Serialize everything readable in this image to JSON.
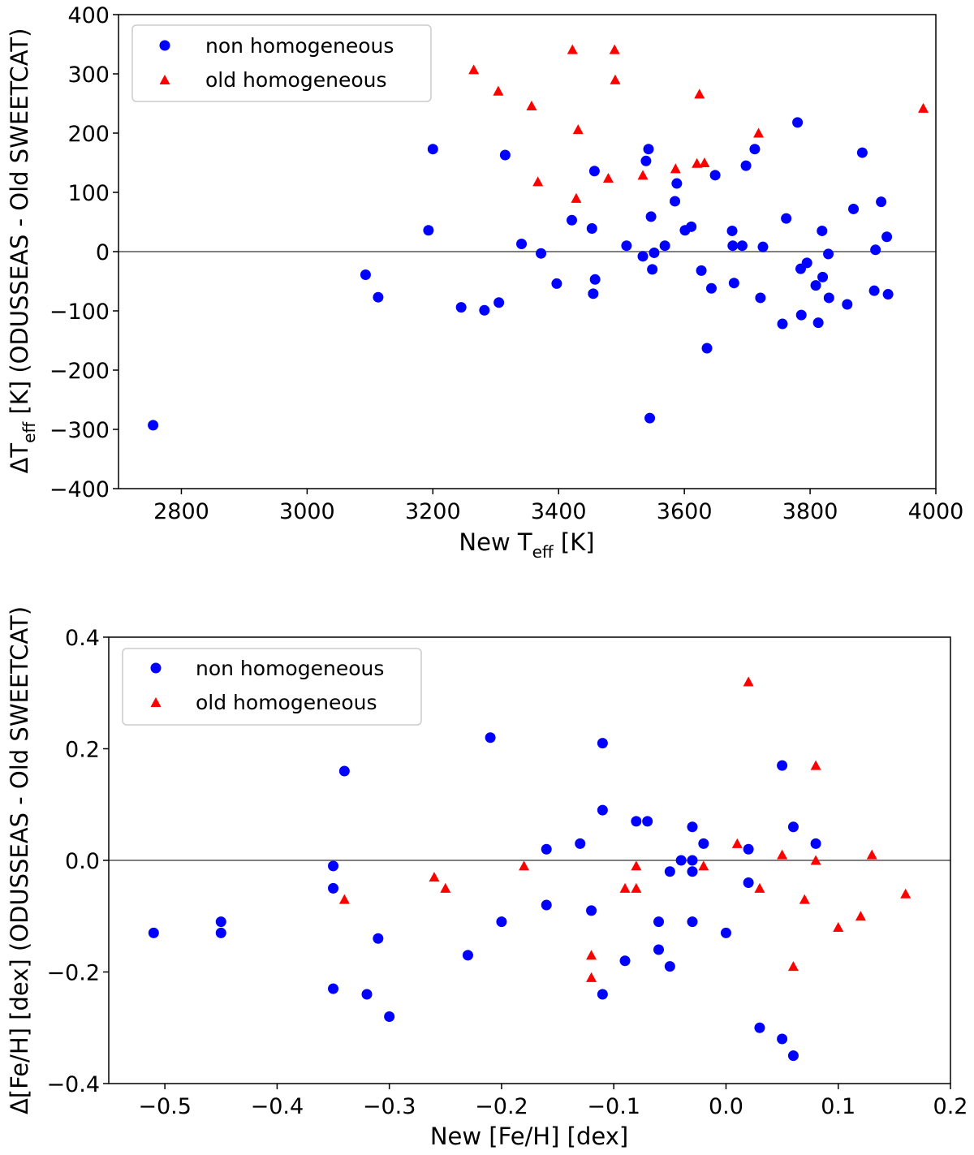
{
  "colors": {
    "non_homogeneous": "#0000ff",
    "old_homogeneous": "#ff0000",
    "zero_line": "#808080"
  },
  "chart_data": [
    {
      "type": "scatter",
      "panel": "top",
      "xlabel": {
        "main": "New T",
        "sub": "eff",
        "tail": " [K]"
      },
      "ylabel": {
        "pre": "ΔT",
        "sub": "eff",
        "tail": " [K] (ODUSSEAS - Old SWEETCAT)"
      },
      "xlim": [
        2700,
        4000
      ],
      "ylim": [
        -400,
        400
      ],
      "xticks": [
        2800,
        3000,
        3200,
        3400,
        3600,
        3800,
        4000
      ],
      "yticks": [
        -400,
        -300,
        -200,
        -100,
        0,
        100,
        200,
        300,
        400
      ],
      "xtick_labels": [
        "2800",
        "3000",
        "3200",
        "3400",
        "3600",
        "3800",
        "4000"
      ],
      "ytick_labels": [
        "−400",
        "−300",
        "−200",
        "−100",
        "0",
        "100",
        "200",
        "300",
        "400"
      ],
      "zero_line": 0,
      "legend": {
        "position": "upper-left",
        "labels": [
          "non homogeneous",
          "old homogeneous"
        ]
      },
      "series": [
        {
          "name": "non homogeneous",
          "marker": "circle",
          "points": [
            [
              2755,
              -293
            ],
            [
              3093,
              -39
            ],
            [
              3113,
              -77
            ],
            [
              3193,
              36
            ],
            [
              3200,
              173
            ],
            [
              3245,
              -94
            ],
            [
              3282,
              -99
            ],
            [
              3305,
              -86
            ],
            [
              3315,
              163
            ],
            [
              3341,
              13
            ],
            [
              3372,
              -3
            ],
            [
              3397,
              -54
            ],
            [
              3421,
              53
            ],
            [
              3453,
              39
            ],
            [
              3457,
              136
            ],
            [
              3458,
              -47
            ],
            [
              3455,
              -71
            ],
            [
              3508,
              10
            ],
            [
              3534,
              -8
            ],
            [
              3539,
              153
            ],
            [
              3543,
              173
            ],
            [
              3547,
              59
            ],
            [
              3549,
              -30
            ],
            [
              3552,
              -2
            ],
            [
              3545,
              -281
            ],
            [
              3569,
              10
            ],
            [
              3585,
              85
            ],
            [
              3588,
              115
            ],
            [
              3601,
              36
            ],
            [
              3611,
              42
            ],
            [
              3627,
              -32
            ],
            [
              3636,
              -163
            ],
            [
              3643,
              -62
            ],
            [
              3649,
              129
            ],
            [
              3676,
              35
            ],
            [
              3677,
              10
            ],
            [
              3679,
              -53
            ],
            [
              3692,
              10
            ],
            [
              3698,
              145
            ],
            [
              3712,
              173
            ],
            [
              3721,
              -78
            ],
            [
              3725,
              8
            ],
            [
              3756,
              -122
            ],
            [
              3762,
              56
            ],
            [
              3780,
              218
            ],
            [
              3785,
              -29
            ],
            [
              3786,
              -107
            ],
            [
              3795,
              -19
            ],
            [
              3809,
              -57
            ],
            [
              3813,
              -120
            ],
            [
              3819,
              35
            ],
            [
              3820,
              -43
            ],
            [
              3829,
              -4
            ],
            [
              3830,
              -78
            ],
            [
              3859,
              -89
            ],
            [
              3869,
              72
            ],
            [
              3883,
              167
            ],
            [
              3902,
              -66
            ],
            [
              3904,
              3
            ],
            [
              3913,
              84
            ],
            [
              3922,
              25
            ],
            [
              3924,
              -72
            ]
          ]
        },
        {
          "name": "old homogeneous",
          "marker": "triangle",
          "points": [
            [
              3265,
              307
            ],
            [
              3304,
              271
            ],
            [
              3357,
              246
            ],
            [
              3367,
              118
            ],
            [
              3422,
              341
            ],
            [
              3428,
              90
            ],
            [
              3431,
              206
            ],
            [
              3479,
              124
            ],
            [
              3489,
              341
            ],
            [
              3490,
              290
            ],
            [
              3534,
              129
            ],
            [
              3586,
              140
            ],
            [
              3620,
              149
            ],
            [
              3624,
              266
            ],
            [
              3632,
              150
            ],
            [
              3718,
              200
            ],
            [
              3980,
              242
            ]
          ]
        }
      ]
    },
    {
      "type": "scatter",
      "panel": "bottom",
      "xlabel": {
        "main": "New [Fe/H] [dex]"
      },
      "ylabel": {
        "pre": "Δ[Fe/H] [dex] (ODUSSEAS - Old SWEETCAT)"
      },
      "xlim": [
        -0.55,
        0.2
      ],
      "ylim": [
        -0.4,
        0.4
      ],
      "xticks": [
        -0.5,
        -0.4,
        -0.3,
        -0.2,
        -0.1,
        0.0,
        0.1,
        0.2
      ],
      "yticks": [
        -0.4,
        -0.2,
        0.0,
        0.2,
        0.4
      ],
      "xtick_labels": [
        "−0.5",
        "−0.4",
        "−0.3",
        "−0.2",
        "−0.1",
        "0.0",
        "0.1",
        "0.2"
      ],
      "ytick_labels": [
        "−0.4",
        "−0.2",
        "0.0",
        "0.2",
        "0.4"
      ],
      "zero_line": 0,
      "legend": {
        "position": "upper-left",
        "labels": [
          "non homogeneous",
          "old homogeneous"
        ]
      },
      "series": [
        {
          "name": "non homogeneous",
          "marker": "circle",
          "points": [
            [
              -0.51,
              -0.13
            ],
            [
              -0.45,
              -0.11
            ],
            [
              -0.45,
              -0.13
            ],
            [
              -0.35,
              -0.01
            ],
            [
              -0.35,
              -0.05
            ],
            [
              -0.35,
              -0.23
            ],
            [
              -0.34,
              0.16
            ],
            [
              -0.32,
              -0.24
            ],
            [
              -0.31,
              -0.14
            ],
            [
              -0.3,
              -0.28
            ],
            [
              -0.23,
              -0.17
            ],
            [
              -0.21,
              0.22
            ],
            [
              -0.2,
              -0.11
            ],
            [
              -0.16,
              0.02
            ],
            [
              -0.16,
              -0.08
            ],
            [
              -0.13,
              0.03
            ],
            [
              -0.12,
              -0.09
            ],
            [
              -0.11,
              0.21
            ],
            [
              -0.11,
              0.09
            ],
            [
              -0.11,
              -0.24
            ],
            [
              -0.09,
              -0.18
            ],
            [
              -0.08,
              0.07
            ],
            [
              -0.07,
              0.07
            ],
            [
              -0.06,
              -0.11
            ],
            [
              -0.06,
              -0.16
            ],
            [
              -0.05,
              -0.02
            ],
            [
              -0.05,
              -0.19
            ],
            [
              -0.04,
              0.0
            ],
            [
              -0.03,
              0.06
            ],
            [
              -0.03,
              0.0
            ],
            [
              -0.03,
              -0.02
            ],
            [
              -0.03,
              -0.11
            ],
            [
              -0.02,
              0.03
            ],
            [
              0.0,
              -0.13
            ],
            [
              0.02,
              0.02
            ],
            [
              0.02,
              -0.04
            ],
            [
              0.03,
              -0.3
            ],
            [
              0.05,
              0.17
            ],
            [
              0.05,
              -0.32
            ],
            [
              0.06,
              0.06
            ],
            [
              0.06,
              -0.35
            ],
            [
              0.08,
              0.03
            ]
          ]
        },
        {
          "name": "old homogeneous",
          "marker": "triangle",
          "points": [
            [
              -0.34,
              -0.07
            ],
            [
              -0.26,
              -0.03
            ],
            [
              -0.25,
              -0.05
            ],
            [
              -0.18,
              -0.01
            ],
            [
              -0.12,
              -0.17
            ],
            [
              -0.12,
              -0.21
            ],
            [
              -0.09,
              -0.05
            ],
            [
              -0.08,
              -0.01
            ],
            [
              -0.08,
              -0.05
            ],
            [
              -0.02,
              -0.01
            ],
            [
              0.01,
              0.03
            ],
            [
              0.02,
              0.32
            ],
            [
              0.03,
              -0.05
            ],
            [
              0.05,
              0.01
            ],
            [
              0.06,
              -0.19
            ],
            [
              0.07,
              -0.07
            ],
            [
              0.08,
              0.17
            ],
            [
              0.08,
              0.0
            ],
            [
              0.1,
              -0.12
            ],
            [
              0.12,
              -0.1
            ],
            [
              0.13,
              0.01
            ],
            [
              0.16,
              -0.06
            ]
          ]
        }
      ]
    }
  ]
}
